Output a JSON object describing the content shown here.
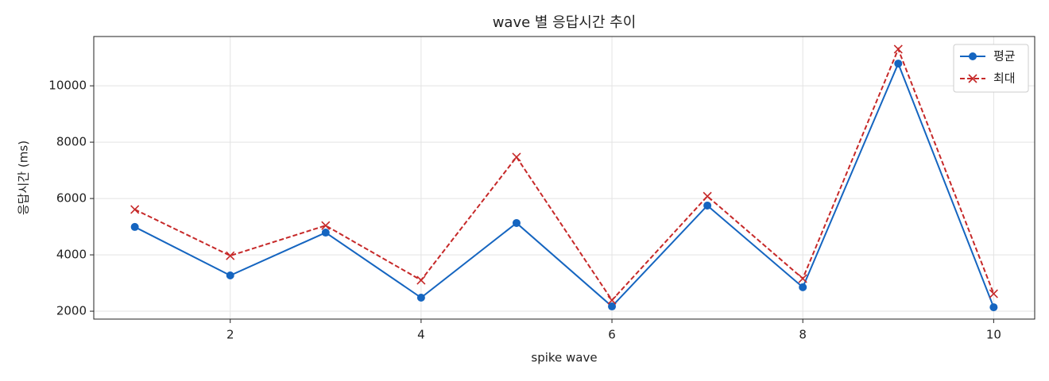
{
  "chart_data": {
    "type": "line",
    "title": "wave 별 응답시간 추이",
    "x_label": "spike wave",
    "y_label": "응답시간 (ms)",
    "x": [
      1,
      2,
      3,
      4,
      5,
      6,
      7,
      8,
      9,
      10
    ],
    "series": [
      {
        "name": "평균",
        "color": "#1565c0",
        "linestyle": "solid",
        "marker": "circle",
        "values": [
          4990,
          3270,
          4790,
          2480,
          5130,
          2170,
          5750,
          2850,
          10790,
          2140
        ]
      },
      {
        "name": "최대",
        "color": "#c62828",
        "linestyle": "dashed",
        "marker": "x",
        "values": [
          5610,
          3970,
          5040,
          3100,
          7470,
          2390,
          6080,
          3160,
          11300,
          2620
        ]
      }
    ],
    "xlim": [
      0.57,
      10.43
    ],
    "xticks": [
      2,
      4,
      6,
      8,
      10
    ],
    "ylim": [
      1720,
      11750
    ],
    "yticks": [
      2000,
      4000,
      6000,
      8000,
      10000
    ],
    "grid": true,
    "legend": "upper right"
  }
}
